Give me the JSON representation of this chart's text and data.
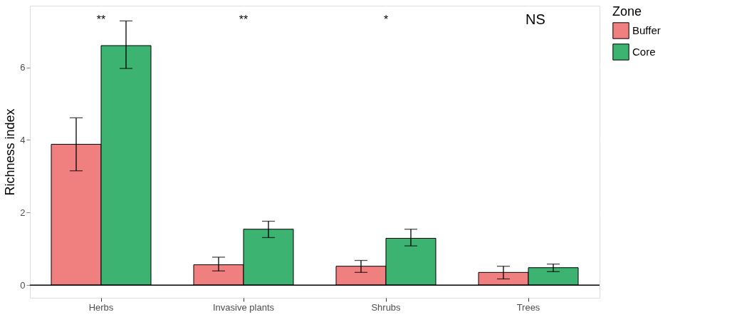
{
  "chart_data": {
    "type": "bar",
    "ylabel": "Richness index",
    "legend_title": "Zone",
    "legend": "right",
    "grid": true,
    "categories": [
      "Herbs",
      "Invasive plants",
      "Shrubs",
      "Trees"
    ],
    "series": [
      {
        "name": "Buffer",
        "color": "#f08080",
        "values": [
          3.88,
          0.56,
          0.52,
          0.35
        ],
        "errors": [
          [
            3.15,
            4.61
          ],
          [
            0.39,
            0.77
          ],
          [
            0.35,
            0.68
          ],
          [
            0.17,
            0.52
          ]
        ]
      },
      {
        "name": "Core",
        "color": "#3cb371",
        "values": [
          6.6,
          1.54,
          1.29,
          0.48
        ],
        "errors": [
          [
            5.97,
            7.28
          ],
          [
            1.31,
            1.76
          ],
          [
            1.08,
            1.54
          ],
          [
            0.37,
            0.58
          ]
        ]
      }
    ],
    "ylim": [
      -0.35,
      7.7
    ],
    "yticks": [
      0,
      2,
      4,
      6
    ],
    "ref_lines": [
      {
        "axis": "y",
        "value": 0,
        "color": "#000000"
      }
    ],
    "annotations": [
      "**",
      "**",
      "*",
      "NS"
    ]
  }
}
